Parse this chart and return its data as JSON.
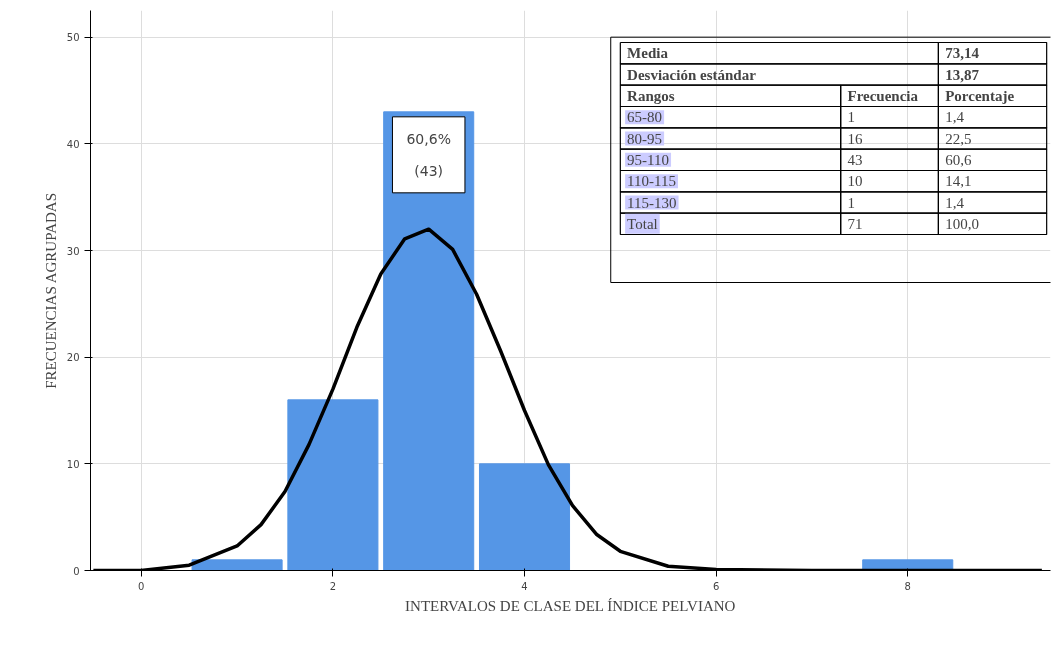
{
  "chart_data": {
    "type": "histogram",
    "xlabel": "INTERVALOS DE CLASE DEL ÍNDICE PELVIANO",
    "ylabel": "FRECUENCIAS AGRUPADAS",
    "series": [
      {
        "bins": [
          0.5,
          1.5,
          2.5,
          3.5,
          4.5,
          5.5,
          6.5,
          7.5,
          8.5
        ],
        "values": [
          1,
          16,
          43,
          10,
          0,
          0,
          0,
          1
        ],
        "color": "#5596e6"
      },
      {
        "type": "line",
        "x": [
          -0.5,
          0,
          0.5,
          1,
          1.25,
          1.5,
          1.75,
          2,
          2.25,
          2.5,
          2.75,
          3,
          3.25,
          3.5,
          3.75,
          4,
          4.25,
          4.5,
          4.75,
          5,
          5.5,
          6,
          7,
          8,
          9.4
        ],
        "values": [
          0,
          0,
          0.5,
          2.3,
          4.3,
          7.4,
          11.8,
          17,
          22.8,
          27.8,
          31.1,
          32,
          30.1,
          25.9,
          20.6,
          15,
          9.9,
          6.1,
          3.4,
          1.8,
          0.4,
          0.1,
          0,
          0,
          0
        ],
        "color": "#000000"
      }
    ],
    "xlim": [
      -0.53,
      9.49
    ],
    "ylim": [
      0,
      52.5
    ],
    "xticks": [
      0,
      2,
      4,
      6,
      8
    ],
    "yticks": [
      0,
      10,
      20,
      30,
      40,
      50
    ],
    "grid": true,
    "annotations": [
      {
        "text": "60,6%\n(43)",
        "x": 3,
        "y": 43
      },
      "Media",
      "73,14",
      "Desviación estándar",
      "13,87",
      "Rangos",
      "Frecuencia",
      "Porcentaje",
      "65-80",
      "1",
      "1,4",
      "80-95",
      "16",
      "22,5",
      "95-110",
      "43",
      "60,6",
      "110-115",
      "10",
      "14,1",
      "115-130",
      "1",
      "1,4",
      "Total",
      "71",
      "100,0"
    ]
  }
}
